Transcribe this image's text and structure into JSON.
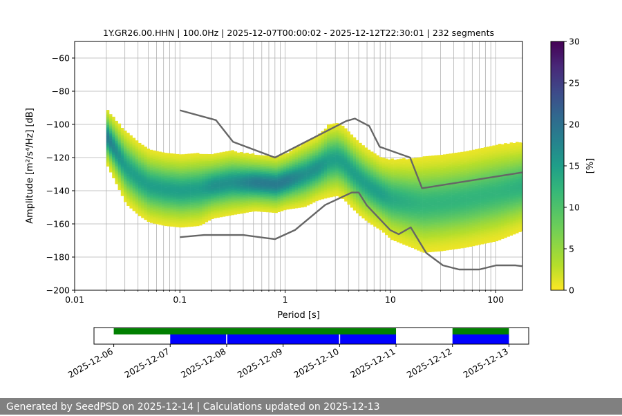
{
  "chart_data": {
    "type": "heatmap",
    "title": "1Y.GR26.00.HHN | 100.0Hz | 2025-12-07T00:00:02 - 2025-12-12T22:30:01 | 232 segments",
    "xlabel": "Period [s]",
    "ylabel": "Amplitude [m²/s⁴/Hz] [dB]",
    "x_scale": "log",
    "xlim": [
      0.01,
      180
    ],
    "ylim": [
      -200,
      -50
    ],
    "x_ticks": [
      0.01,
      0.1,
      1,
      10,
      100
    ],
    "x_tick_labels": [
      "0.01",
      "0.1",
      "1",
      "10",
      "100"
    ],
    "y_ticks": [
      -200,
      -180,
      -160,
      -140,
      -120,
      -100,
      -80,
      -60
    ],
    "y_tick_labels": [
      "−200",
      "−180",
      "−160",
      "−140",
      "−120",
      "−100",
      "−80",
      "−60"
    ],
    "grid": true,
    "colorbar": {
      "label": "[%]",
      "range": [
        0,
        30
      ],
      "ticks": [
        0,
        5,
        10,
        15,
        20,
        25,
        30
      ],
      "tick_labels": [
        "0",
        "5",
        "10",
        "15",
        "20",
        "25",
        "30"
      ],
      "colormap": "viridis_r"
    },
    "psd_mode": {
      "period": [
        0.02,
        0.025,
        0.03,
        0.04,
        0.05,
        0.07,
        0.1,
        0.15,
        0.2,
        0.3,
        0.5,
        0.8,
        1.0,
        1.5,
        2.0,
        2.5,
        3.0,
        3.5,
        4.0,
        5.0,
        6.0,
        8.0,
        10,
        15,
        20,
        30,
        50,
        100,
        180
      ],
      "amplitude": [
        -108,
        -118,
        -126,
        -133,
        -137,
        -139,
        -140,
        -139,
        -137,
        -135,
        -135,
        -136,
        -134,
        -130,
        -126,
        -122,
        -121,
        -123,
        -127,
        -133,
        -137,
        -142,
        -145,
        -147,
        -148,
        -147,
        -145,
        -141,
        -137
      ]
    },
    "psd_spread_db": [
      7,
      8,
      9,
      9,
      9,
      9,
      9,
      9,
      8,
      8,
      7,
      7,
      7,
      8,
      8,
      9,
      9,
      9,
      9,
      9,
      9,
      9,
      10,
      11,
      12,
      12,
      12,
      12,
      11
    ],
    "nhnm": {
      "period": [
        0.1,
        0.22,
        0.32,
        0.8,
        3.8,
        4.6,
        6.3,
        7.9,
        15.4,
        20,
        354.8
      ],
      "amplitude": [
        -91.5,
        -97.4,
        -110.5,
        -120,
        -98,
        -96.5,
        -101,
        -113.5,
        -120,
        -138.5,
        -126
      ]
    },
    "nlnm": {
      "period": [
        0.1,
        0.17,
        0.4,
        0.8,
        1.24,
        2.4,
        4.3,
        5,
        6,
        10,
        12,
        15.6,
        21.9,
        31.6,
        45,
        70,
        101,
        154,
        178
      ],
      "amplitude": [
        -168,
        -166.7,
        -166.7,
        -169.2,
        -163.7,
        -148.6,
        -141.1,
        -141.1,
        -149,
        -163.8,
        -166.2,
        -162.1,
        -177.5,
        -185,
        -187.5,
        -187.5,
        -185,
        -185,
        -185.5
      ]
    },
    "timeline": {
      "tick_labels": [
        "2025-12-06",
        "2025-12-07",
        "2025-12-08",
        "2025-12-09",
        "2025-12-10",
        "2025-12-11",
        "2025-12-12",
        "2025-12-13"
      ],
      "xlim": [
        -0.35,
        7.35
      ],
      "data_available": [
        [
          0.0,
          5.0
        ],
        [
          6.0,
          7.0
        ]
      ],
      "data_used": [
        [
          1.0,
          1.99
        ],
        [
          2.01,
          3.99
        ],
        [
          4.01,
          5.0
        ],
        [
          6.0,
          7.0
        ]
      ],
      "colors": {
        "available": "#008000",
        "used": "#0000ff"
      }
    }
  },
  "footer": {
    "text": "Generated by SeedPSD on 2025-12-14 | Calculations updated on 2025-12-13"
  },
  "colors": {
    "noise_model": "#666666",
    "grid": "#b0b0b0",
    "footer_bg": "#808080"
  }
}
